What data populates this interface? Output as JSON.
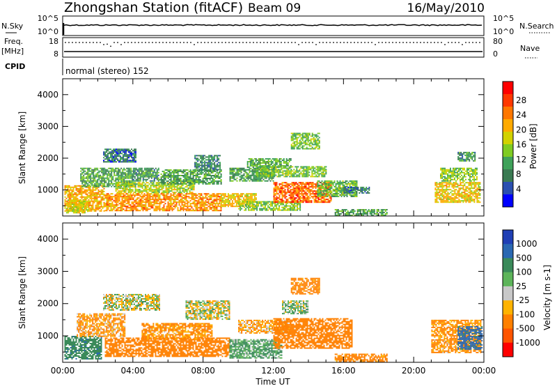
{
  "header": {
    "station_title": "Zhongshan Station (fitACF)",
    "beam": "Beam 09",
    "date": "16/May/2010"
  },
  "status_panel": {
    "left_labels": {
      "nsky": "N.Sky",
      "freq": "Freq.",
      "freq_unit": "[MHz]",
      "cpid": "CPID"
    },
    "right_labels": {
      "nsearch": "N.Search",
      "nave": "Nave"
    },
    "nsky_ticks": [
      "10^5",
      "10^0"
    ],
    "nsearch_ticks": [
      "10^5",
      "10^0"
    ],
    "freq_ticks": [
      "18",
      "8"
    ],
    "nave_ticks": [
      "80",
      "0"
    ],
    "cpid_text": "normal (stereo) 152"
  },
  "chart_data": [
    {
      "type": "heatmap",
      "panel": "power",
      "ylabel": "Slant Range [km]",
      "colorbar_label": "Power [dB]",
      "x_ticks": [
        "00:00",
        "04:00",
        "08:00",
        "12:00",
        "16:00",
        "20:00",
        "00:00"
      ],
      "y_ticks": [
        "1000",
        "2000",
        "3000",
        "4000"
      ],
      "ylim": [
        180,
        4500
      ],
      "xlim_hours": [
        0,
        24
      ],
      "colorbar_ticks": [
        "28",
        "24",
        "20",
        "16",
        "12",
        "8",
        "4"
      ],
      "colorbar_colors": [
        "#ff0000",
        "#ff3800",
        "#ff7700",
        "#ffaa00",
        "#d2d200",
        "#7fcc22",
        "#3fa25a",
        "#3a7a52",
        "#2a4fb0",
        "#0000ff"
      ],
      "blobs": [
        {
          "t": [
            0.1,
            2.4
          ],
          "r": [
            350,
            1150
          ],
          "v": 22
        },
        {
          "t": [
            0.2,
            1.4
          ],
          "r": [
            300,
            700
          ],
          "v": 18
        },
        {
          "t": [
            1.0,
            4.0
          ],
          "r": [
            1100,
            1700
          ],
          "v": 10
        },
        {
          "t": [
            2.3,
            4.2
          ],
          "r": [
            1900,
            2300
          ],
          "v": 6
        },
        {
          "t": [
            2.4,
            9.0
          ],
          "r": [
            350,
            900
          ],
          "v": 24
        },
        {
          "t": [
            3.0,
            7.5
          ],
          "r": [
            900,
            1250
          ],
          "v": 16
        },
        {
          "t": [
            4.0,
            5.5
          ],
          "r": [
            1300,
            1700
          ],
          "v": 8
        },
        {
          "t": [
            5.5,
            9.0
          ],
          "r": [
            1200,
            1650
          ],
          "v": 10
        },
        {
          "t": [
            7.5,
            9.0
          ],
          "r": [
            1600,
            2100
          ],
          "v": 7
        },
        {
          "t": [
            9.0,
            11.0
          ],
          "r": [
            500,
            900
          ],
          "v": 20
        },
        {
          "t": [
            9.5,
            12.0
          ],
          "r": [
            1300,
            1700
          ],
          "v": 9
        },
        {
          "t": [
            10.0,
            13.5
          ],
          "r": [
            350,
            650
          ],
          "v": 14
        },
        {
          "t": [
            10.5,
            13.0
          ],
          "r": [
            1700,
            2000
          ],
          "v": 11
        },
        {
          "t": [
            11.0,
            15.0
          ],
          "r": [
            1400,
            1750
          ],
          "v": 13
        },
        {
          "t": [
            12.0,
            15.3
          ],
          "r": [
            600,
            1250
          ],
          "v": 27
        },
        {
          "t": [
            13.0,
            14.6
          ],
          "r": [
            2300,
            2800
          ],
          "v": 13
        },
        {
          "t": [
            14.5,
            16.8
          ],
          "r": [
            800,
            1300
          ],
          "v": 12
        },
        {
          "t": [
            15.5,
            18.5
          ],
          "r": [
            200,
            400
          ],
          "v": 9
        },
        {
          "t": [
            16.0,
            17.5
          ],
          "r": [
            900,
            1100
          ],
          "v": 6
        },
        {
          "t": [
            21.2,
            23.8
          ],
          "r": [
            600,
            1250
          ],
          "v": 20
        },
        {
          "t": [
            21.5,
            23.6
          ],
          "r": [
            1300,
            1700
          ],
          "v": 14
        },
        {
          "t": [
            22.5,
            23.5
          ],
          "r": [
            1900,
            2200
          ],
          "v": 8
        }
      ]
    },
    {
      "type": "heatmap",
      "panel": "velocity",
      "xlabel": "Time UT",
      "ylabel": "Slant Range [km]",
      "colorbar_label": "Velocity [m s-1]",
      "x_ticks": [
        "00:00",
        "04:00",
        "08:00",
        "12:00",
        "16:00",
        "20:00",
        "00:00"
      ],
      "y_ticks": [
        "1000",
        "2000",
        "3000",
        "4000"
      ],
      "ylim": [
        180,
        4500
      ],
      "xlim_hours": [
        0,
        24
      ],
      "colorbar_ticks": [
        "1000",
        "500",
        "100",
        "25",
        "-25",
        "-100",
        "-500",
        "-1000"
      ],
      "colorbar_colors": [
        "#1f3fb5",
        "#2a68b2",
        "#3a8a5a",
        "#5db45a",
        "#c8c8c8",
        "#ffb300",
        "#ff8000",
        "#ff5500",
        "#ff0000"
      ],
      "blobs": [
        {
          "t": [
            0.1,
            2.2
          ],
          "r": [
            300,
            1000
          ],
          "v": 400
        },
        {
          "t": [
            0.8,
            3.5
          ],
          "r": [
            1000,
            1700
          ],
          "v": -120
        },
        {
          "t": [
            2.3,
            5.5
          ],
          "r": [
            1800,
            2300
          ],
          "v": 0
        },
        {
          "t": [
            2.4,
            9.5
          ],
          "r": [
            350,
            950
          ],
          "v": -300
        },
        {
          "t": [
            4.5,
            8.5
          ],
          "r": [
            900,
            1400
          ],
          "v": -150
        },
        {
          "t": [
            7.0,
            9.5
          ],
          "r": [
            1500,
            2100
          ],
          "v": 0
        },
        {
          "t": [
            9.5,
            12.5
          ],
          "r": [
            300,
            900
          ],
          "v": 120
        },
        {
          "t": [
            10.0,
            13.0
          ],
          "r": [
            1100,
            1500
          ],
          "v": -100
        },
        {
          "t": [
            12.0,
            16.5
          ],
          "r": [
            600,
            1550
          ],
          "v": -350
        },
        {
          "t": [
            13.0,
            14.6
          ],
          "r": [
            2300,
            2800
          ],
          "v": -200
        },
        {
          "t": [
            12.5,
            14.0
          ],
          "r": [
            1700,
            2100
          ],
          "v": 60
        },
        {
          "t": [
            15.5,
            18.5
          ],
          "r": [
            200,
            450
          ],
          "v": -200
        },
        {
          "t": [
            21.0,
            23.8
          ],
          "r": [
            500,
            1500
          ],
          "v": -150
        },
        {
          "t": [
            22.5,
            23.9
          ],
          "r": [
            600,
            1300
          ],
          "v": 600
        }
      ]
    }
  ]
}
